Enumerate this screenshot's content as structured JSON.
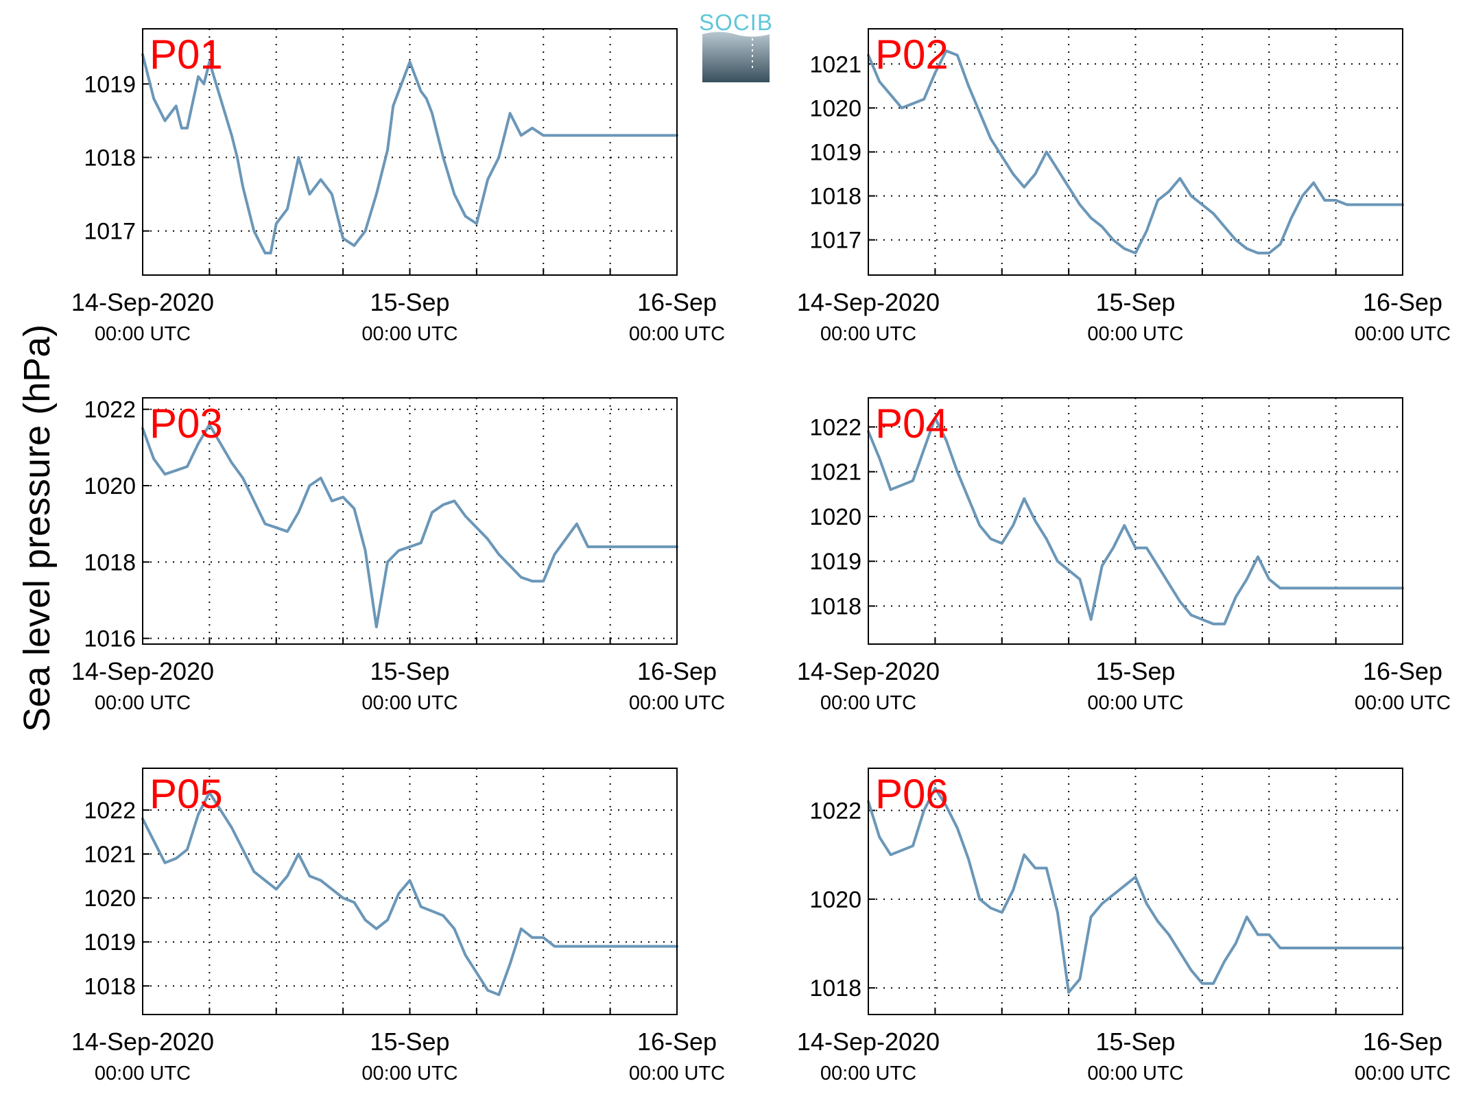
{
  "figure": {
    "ylabel": "Sea level pressure (hPa)",
    "logo_text": "SOCIB",
    "line_color": "#6b97b8",
    "label_color": "#ff0000"
  },
  "chart_data": [
    {
      "type": "line",
      "panel_label": "P01",
      "x_range_hours": [
        0,
        48
      ],
      "x_ticks": [
        {
          "hour": 0,
          "label": "14-Sep-2020",
          "sub": "00:00 UTC"
        },
        {
          "hour": 24,
          "label": "15-Sep",
          "sub": "00:00 UTC"
        },
        {
          "hour": 48,
          "label": "16-Sep",
          "sub": "00:00 UTC"
        }
      ],
      "x_minor_gridlines_hours": [
        6,
        12,
        18,
        30,
        36,
        42
      ],
      "ylim": [
        1016.4,
        1019.75
      ],
      "y_ticks": [
        1017,
        1018,
        1019
      ],
      "grid": true,
      "series": [
        {
          "x": [
            0,
            1,
            2,
            3,
            3.5,
            4,
            5,
            5.5,
            6,
            7,
            8,
            8.5,
            9,
            9.5,
            10,
            11,
            11.5,
            12,
            13,
            14,
            15,
            16,
            17,
            18,
            19,
            20,
            21,
            22,
            22.5,
            23,
            24,
            25,
            25.5,
            26,
            27,
            28,
            29,
            30,
            31,
            32,
            33,
            34,
            35,
            36,
            37,
            38,
            39,
            40,
            41,
            42,
            43,
            44,
            45,
            46,
            47,
            48
          ],
          "y": [
            1019.4,
            1018.8,
            1018.5,
            1018.7,
            1018.4,
            1018.4,
            1019.1,
            1019.0,
            1019.3,
            1018.8,
            1018.3,
            1018.0,
            1017.6,
            1017.3,
            1017.0,
            1016.7,
            1016.7,
            1017.1,
            1017.3,
            1018.0,
            1017.5,
            1017.7,
            1017.5,
            1016.9,
            1016.8,
            1017.0,
            1017.5,
            1018.1,
            1018.7,
            1018.9,
            1019.3,
            1018.9,
            1018.8,
            1018.6,
            1018.0,
            1017.5,
            1017.2,
            1017.1,
            1017.7,
            1018.0,
            1018.6,
            1018.3,
            1018.4,
            1018.3,
            1018.3,
            1018.3,
            1018.3,
            1018.3,
            1018.3,
            1018.3,
            1018.3,
            1018.3,
            1018.3,
            1018.3,
            1018.3,
            1018.3
          ]
        }
      ]
    },
    {
      "type": "line",
      "panel_label": "P02",
      "x_range_hours": [
        0,
        48
      ],
      "x_ticks": [
        {
          "hour": 0,
          "label": "14-Sep-2020",
          "sub": "00:00 UTC"
        },
        {
          "hour": 24,
          "label": "15-Sep",
          "sub": "00:00 UTC"
        },
        {
          "hour": 48,
          "label": "16-Sep",
          "sub": "00:00 UTC"
        }
      ],
      "x_minor_gridlines_hours": [
        6,
        12,
        18,
        30,
        36,
        42
      ],
      "ylim": [
        1016.2,
        1021.8
      ],
      "y_ticks": [
        1017,
        1018,
        1019,
        1020,
        1021
      ],
      "grid": true,
      "series": [
        {
          "x": [
            0,
            1,
            2,
            3,
            4,
            5,
            6,
            7,
            8,
            9,
            10,
            11,
            12,
            13,
            14,
            15,
            16,
            17,
            18,
            19,
            20,
            21,
            22,
            23,
            24,
            25,
            26,
            27,
            28,
            29,
            30,
            31,
            32,
            33,
            34,
            35,
            36,
            37,
            38,
            39,
            40,
            41,
            42,
            43,
            44,
            45,
            46,
            47,
            48
          ],
          "y": [
            1021.2,
            1020.6,
            1020.3,
            1020.0,
            1020.1,
            1020.2,
            1020.8,
            1021.3,
            1021.2,
            1020.5,
            1019.9,
            1019.3,
            1018.9,
            1018.5,
            1018.2,
            1018.5,
            1019.0,
            1018.6,
            1018.2,
            1017.8,
            1017.5,
            1017.3,
            1017.0,
            1016.8,
            1016.7,
            1017.2,
            1017.9,
            1018.1,
            1018.4,
            1018.0,
            1017.8,
            1017.6,
            1017.3,
            1017.0,
            1016.8,
            1016.7,
            1016.7,
            1016.9,
            1017.5,
            1018.0,
            1018.3,
            1017.9,
            1017.9,
            1017.8,
            1017.8,
            1017.8,
            1017.8,
            1017.8,
            1017.8
          ]
        }
      ]
    },
    {
      "type": "line",
      "panel_label": "P03",
      "x_range_hours": [
        0,
        48
      ],
      "x_ticks": [
        {
          "hour": 0,
          "label": "14-Sep-2020",
          "sub": "00:00 UTC"
        },
        {
          "hour": 24,
          "label": "15-Sep",
          "sub": "00:00 UTC"
        },
        {
          "hour": 48,
          "label": "16-Sep",
          "sub": "00:00 UTC"
        }
      ],
      "x_minor_gridlines_hours": [
        6,
        12,
        18,
        30,
        36,
        42
      ],
      "ylim": [
        1015.85,
        1022.3
      ],
      "y_ticks": [
        1016,
        1018,
        1020,
        1022
      ],
      "grid": true,
      "series": [
        {
          "x": [
            0,
            1,
            2,
            3,
            4,
            5,
            6,
            7,
            8,
            9,
            10,
            11,
            12,
            13,
            14,
            15,
            16,
            17,
            18,
            19,
            20,
            21,
            22,
            23,
            24,
            25,
            26,
            27,
            28,
            29,
            30,
            31,
            32,
            33,
            34,
            35,
            36,
            37,
            38,
            39,
            40,
            41,
            42,
            43,
            44,
            45,
            46,
            47,
            48
          ],
          "y": [
            1021.5,
            1020.7,
            1020.3,
            1020.4,
            1020.5,
            1021.1,
            1021.6,
            1021.1,
            1020.6,
            1020.2,
            1019.6,
            1019.0,
            1018.9,
            1018.8,
            1019.3,
            1020.0,
            1020.2,
            1019.6,
            1019.7,
            1019.4,
            1018.3,
            1016.3,
            1018.0,
            1018.3,
            1018.4,
            1018.5,
            1019.3,
            1019.5,
            1019.6,
            1019.2,
            1018.9,
            1018.6,
            1018.2,
            1017.9,
            1017.6,
            1017.5,
            1017.5,
            1018.2,
            1018.6,
            1019.0,
            1018.4,
            1018.4,
            1018.4,
            1018.4,
            1018.4,
            1018.4,
            1018.4,
            1018.4,
            1018.4
          ]
        }
      ]
    },
    {
      "type": "line",
      "panel_label": "P04",
      "x_range_hours": [
        0,
        48
      ],
      "x_ticks": [
        {
          "hour": 0,
          "label": "14-Sep-2020",
          "sub": "00:00 UTC"
        },
        {
          "hour": 24,
          "label": "15-Sep",
          "sub": "00:00 UTC"
        },
        {
          "hour": 48,
          "label": "16-Sep",
          "sub": "00:00 UTC"
        }
      ],
      "x_minor_gridlines_hours": [
        6,
        12,
        18,
        30,
        36,
        42
      ],
      "ylim": [
        1017.15,
        1022.65
      ],
      "y_ticks": [
        1018,
        1019,
        1020,
        1021,
        1022
      ],
      "grid": true,
      "series": [
        {
          "x": [
            0,
            1,
            2,
            3,
            4,
            5,
            6,
            7,
            8,
            9,
            10,
            11,
            12,
            13,
            14,
            15,
            16,
            17,
            18,
            19,
            20,
            21,
            22,
            23,
            24,
            25,
            26,
            27,
            28,
            29,
            30,
            31,
            32,
            33,
            34,
            35,
            36,
            37,
            38,
            39,
            40,
            41,
            42,
            43,
            44,
            45,
            46,
            47,
            48
          ],
          "y": [
            1021.9,
            1021.3,
            1020.6,
            1020.7,
            1020.8,
            1021.5,
            1022.2,
            1021.7,
            1021.0,
            1020.4,
            1019.8,
            1019.5,
            1019.4,
            1019.8,
            1020.4,
            1019.9,
            1019.5,
            1019.0,
            1018.8,
            1018.6,
            1017.7,
            1018.9,
            1019.3,
            1019.8,
            1019.3,
            1019.3,
            1018.9,
            1018.5,
            1018.1,
            1017.8,
            1017.7,
            1017.6,
            1017.6,
            1018.2,
            1018.6,
            1019.1,
            1018.6,
            1018.4,
            1018.4,
            1018.4,
            1018.4,
            1018.4,
            1018.4,
            1018.4,
            1018.4,
            1018.4,
            1018.4,
            1018.4,
            1018.4
          ]
        }
      ]
    },
    {
      "type": "line",
      "panel_label": "P05",
      "x_range_hours": [
        0,
        48
      ],
      "x_ticks": [
        {
          "hour": 0,
          "label": "14-Sep-2020",
          "sub": "00:00 UTC"
        },
        {
          "hour": 24,
          "label": "15-Sep",
          "sub": "00:00 UTC"
        },
        {
          "hour": 48,
          "label": "16-Sep",
          "sub": "00:00 UTC"
        }
      ],
      "x_minor_gridlines_hours": [
        6,
        12,
        18,
        30,
        36,
        42
      ],
      "ylim": [
        1017.35,
        1022.95
      ],
      "y_ticks": [
        1018,
        1019,
        1020,
        1021,
        1022
      ],
      "grid": true,
      "series": [
        {
          "x": [
            0,
            1,
            2,
            3,
            4,
            5,
            6,
            7,
            8,
            9,
            10,
            11,
            12,
            13,
            14,
            15,
            16,
            17,
            18,
            19,
            20,
            21,
            22,
            23,
            24,
            25,
            26,
            27,
            28,
            29,
            30,
            31,
            32,
            33,
            34,
            35,
            36,
            37,
            38,
            39,
            40,
            41,
            42,
            43,
            44,
            45,
            46,
            47,
            48
          ],
          "y": [
            1021.8,
            1021.3,
            1020.8,
            1020.9,
            1021.1,
            1021.9,
            1022.4,
            1022.0,
            1021.6,
            1021.1,
            1020.6,
            1020.4,
            1020.2,
            1020.5,
            1021.0,
            1020.5,
            1020.4,
            1020.2,
            1020.0,
            1019.9,
            1019.5,
            1019.3,
            1019.5,
            1020.1,
            1020.4,
            1019.8,
            1019.7,
            1019.6,
            1019.3,
            1018.7,
            1018.3,
            1017.9,
            1017.8,
            1018.5,
            1019.3,
            1019.1,
            1019.1,
            1018.9,
            1018.9,
            1018.9,
            1018.9,
            1018.9,
            1018.9,
            1018.9,
            1018.9,
            1018.9,
            1018.9,
            1018.9,
            1018.9
          ]
        }
      ]
    },
    {
      "type": "line",
      "panel_label": "P06",
      "x_range_hours": [
        0,
        48
      ],
      "x_ticks": [
        {
          "hour": 0,
          "label": "14-Sep-2020",
          "sub": "00:00 UTC"
        },
        {
          "hour": 24,
          "label": "15-Sep",
          "sub": "00:00 UTC"
        },
        {
          "hour": 48,
          "label": "16-Sep",
          "sub": "00:00 UTC"
        }
      ],
      "x_minor_gridlines_hours": [
        6,
        12,
        18,
        30,
        36,
        42
      ],
      "ylim": [
        1017.4,
        1022.95
      ],
      "y_ticks": [
        1018,
        1020,
        1022
      ],
      "grid": true,
      "series": [
        {
          "x": [
            0,
            1,
            2,
            3,
            4,
            5,
            6,
            7,
            8,
            9,
            10,
            11,
            12,
            13,
            14,
            15,
            16,
            17,
            18,
            19,
            20,
            21,
            22,
            23,
            24,
            25,
            26,
            27,
            28,
            29,
            30,
            31,
            32,
            33,
            34,
            35,
            36,
            37,
            38,
            39,
            40,
            41,
            42,
            43,
            44,
            45,
            46,
            47,
            48
          ],
          "y": [
            1022.2,
            1021.4,
            1021.0,
            1021.1,
            1021.2,
            1022.0,
            1022.5,
            1022.1,
            1021.6,
            1020.9,
            1020.0,
            1019.8,
            1019.7,
            1020.2,
            1021.0,
            1020.7,
            1020.7,
            1019.7,
            1017.9,
            1018.2,
            1019.6,
            1019.9,
            1020.1,
            1020.3,
            1020.5,
            1019.9,
            1019.5,
            1019.2,
            1018.8,
            1018.4,
            1018.1,
            1018.1,
            1018.6,
            1019.0,
            1019.6,
            1019.2,
            1019.2,
            1018.9,
            1018.9,
            1018.9,
            1018.9,
            1018.9,
            1018.9,
            1018.9,
            1018.9,
            1018.9,
            1018.9,
            1018.9,
            1018.9
          ]
        }
      ]
    }
  ]
}
